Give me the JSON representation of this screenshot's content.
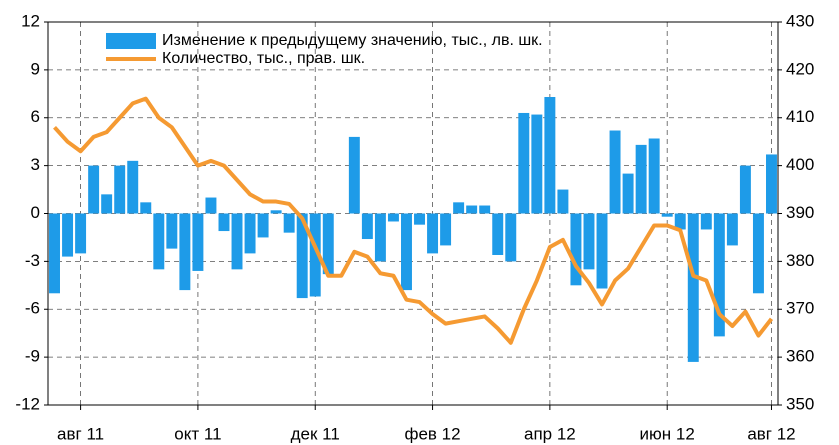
{
  "chart_data": {
    "type": "bar+line",
    "categories": [
      null,
      null,
      "авг 11",
      null,
      null,
      null,
      null,
      null,
      null,
      null,
      null,
      "окт 11",
      null,
      null,
      null,
      null,
      null,
      null,
      null,
      null,
      "дек 11",
      null,
      null,
      null,
      null,
      null,
      null,
      null,
      null,
      "фев 12",
      null,
      null,
      null,
      null,
      null,
      null,
      null,
      null,
      "апр 12",
      null,
      null,
      null,
      null,
      null,
      null,
      null,
      null,
      "июн 12",
      null,
      null,
      null,
      null,
      null,
      null,
      null,
      "авг 12"
    ],
    "series": [
      {
        "name": "Изменение к предыдущему значению, тыс., лв. шк.",
        "type": "bar",
        "color": "#1e9be8",
        "values": [
          -5,
          -2.7,
          -2.5,
          3,
          1.2,
          3,
          3.3,
          0.7,
          -3.5,
          -2.2,
          -4.8,
          -3.6,
          1,
          -1.1,
          -3.5,
          -2.5,
          -1.5,
          0.2,
          -1.2,
          -5.3,
          -5.2,
          -3.8,
          0,
          4.8,
          -1.6,
          -3,
          -0.5,
          -4.8,
          -0.7,
          -2.5,
          -2,
          0.7,
          0.5,
          0.5,
          -2.6,
          -3,
          6.3,
          6.2,
          7.3,
          1.5,
          -4.5,
          -3.5,
          -4.7,
          5.2,
          2.5,
          4.3,
          4.7,
          -0.2,
          -1,
          -9.3,
          -1,
          -7.7,
          -2,
          3,
          -5,
          3.7
        ]
      },
      {
        "name": "Количество, тыс., прав. шк.",
        "type": "line",
        "color": "#f59a32",
        "axis": "y2",
        "values": [
          408,
          405,
          403,
          406,
          407,
          410,
          413,
          414,
          410,
          408,
          404,
          400,
          401,
          400,
          397,
          394,
          392.5,
          392.5,
          392,
          389,
          383,
          377,
          377,
          382,
          381,
          377.5,
          377,
          372,
          371.5,
          369,
          367,
          367.5,
          368,
          368.5,
          366,
          363,
          370,
          376,
          383,
          384.5,
          379,
          375.5,
          371,
          376,
          378.5,
          383,
          387.5,
          387.5,
          386.5,
          377,
          376,
          369,
          366.5,
          369.5,
          364.5,
          368
        ]
      }
    ],
    "ylim": [
      -12,
      12
    ],
    "yticks": [
      -12,
      -9,
      -6,
      -3,
      0,
      3,
      6,
      9,
      12
    ],
    "y2lim": [
      350,
      430
    ],
    "y2ticks": [
      350,
      360,
      370,
      380,
      390,
      400,
      410,
      420,
      430
    ],
    "grid": true,
    "legend": "top-left"
  }
}
